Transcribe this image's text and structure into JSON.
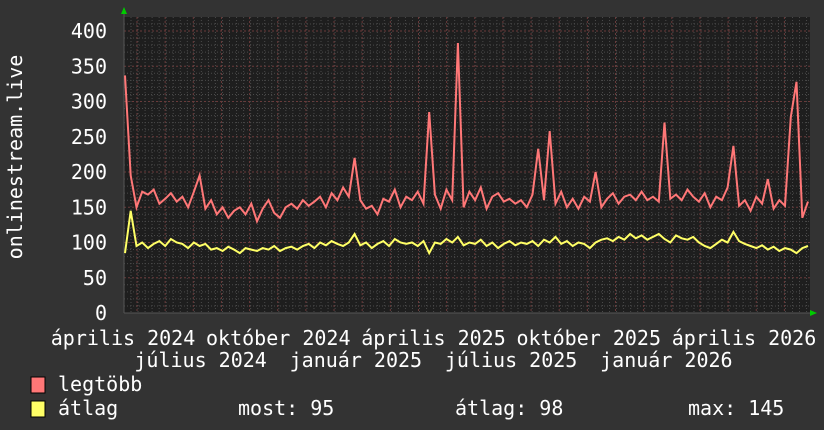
{
  "chart_data": {
    "type": "line",
    "ylabel": "onlinestream.live",
    "ylim": [
      0,
      400
    ],
    "yticks": [
      0,
      50,
      100,
      150,
      200,
      250,
      300,
      350,
      400
    ],
    "grid": true,
    "xticks": [
      "április 2024",
      "július 2024",
      "október 2024",
      "január 2025",
      "április 2025",
      "július 2025",
      "október 2025",
      "január 2026",
      "április 2026"
    ],
    "colors": {
      "background": "#333333",
      "plot": "#1e1e1e",
      "legtobb": "#ff7777",
      "atlag": "#ffff66",
      "arrow": "#00cc00"
    },
    "series": [
      {
        "name": "legtöbb",
        "color": "#ff7777",
        "values": [
          337,
          195,
          150,
          172,
          168,
          175,
          155,
          162,
          170,
          158,
          165,
          150,
          172,
          195,
          148,
          160,
          140,
          150,
          135,
          145,
          150,
          140,
          155,
          130,
          148,
          160,
          142,
          135,
          150,
          155,
          148,
          160,
          152,
          158,
          165,
          150,
          170,
          160,
          178,
          165,
          220,
          160,
          148,
          152,
          140,
          162,
          158,
          175,
          150,
          165,
          160,
          172,
          155,
          285,
          168,
          148,
          175,
          160,
          383,
          150,
          172,
          160,
          178,
          148,
          165,
          170,
          158,
          162,
          155,
          160,
          150,
          168,
          233,
          160,
          258,
          155,
          172,
          150,
          162,
          148,
          165,
          158,
          200,
          150,
          162,
          170,
          155,
          165,
          168,
          160,
          172,
          160,
          165,
          158,
          270,
          162,
          168,
          160,
          175,
          165,
          158,
          170,
          150,
          165,
          160,
          178,
          237,
          152,
          160,
          145,
          165,
          155,
          190,
          148,
          160,
          152,
          278,
          328,
          135,
          158
        ]
      },
      {
        "name": "átlag",
        "color": "#ffff66",
        "values": [
          85,
          145,
          95,
          100,
          92,
          98,
          102,
          95,
          105,
          100,
          98,
          92,
          100,
          95,
          98,
          90,
          92,
          88,
          94,
          90,
          85,
          92,
          90,
          88,
          92,
          90,
          95,
          88,
          92,
          94,
          90,
          95,
          98,
          92,
          100,
          96,
          102,
          98,
          95,
          100,
          112,
          96,
          100,
          92,
          98,
          102,
          95,
          105,
          100,
          98,
          100,
          95,
          102,
          85,
          100,
          98,
          105,
          100,
          108,
          96,
          100,
          98,
          104,
          95,
          100,
          92,
          98,
          102,
          96,
          100,
          98,
          102,
          95,
          104,
          100,
          108,
          98,
          102,
          95,
          100,
          98,
          92,
          100,
          104,
          106,
          102,
          108,
          104,
          112,
          106,
          110,
          104,
          108,
          112,
          105,
          100,
          110,
          106,
          104,
          108,
          100,
          95,
          92,
          98,
          104,
          100,
          115,
          102,
          98,
          95,
          92,
          96,
          90,
          94,
          88,
          92,
          90,
          85,
          92,
          95
        ]
      }
    ]
  },
  "legend": {
    "items": [
      {
        "label": "legtöbb",
        "color": "#ff7777"
      },
      {
        "label": "átlag",
        "color": "#ffff66"
      }
    ],
    "stats": {
      "now": "most: 95",
      "avg": "átlag: 98",
      "max": "max: 145"
    }
  }
}
